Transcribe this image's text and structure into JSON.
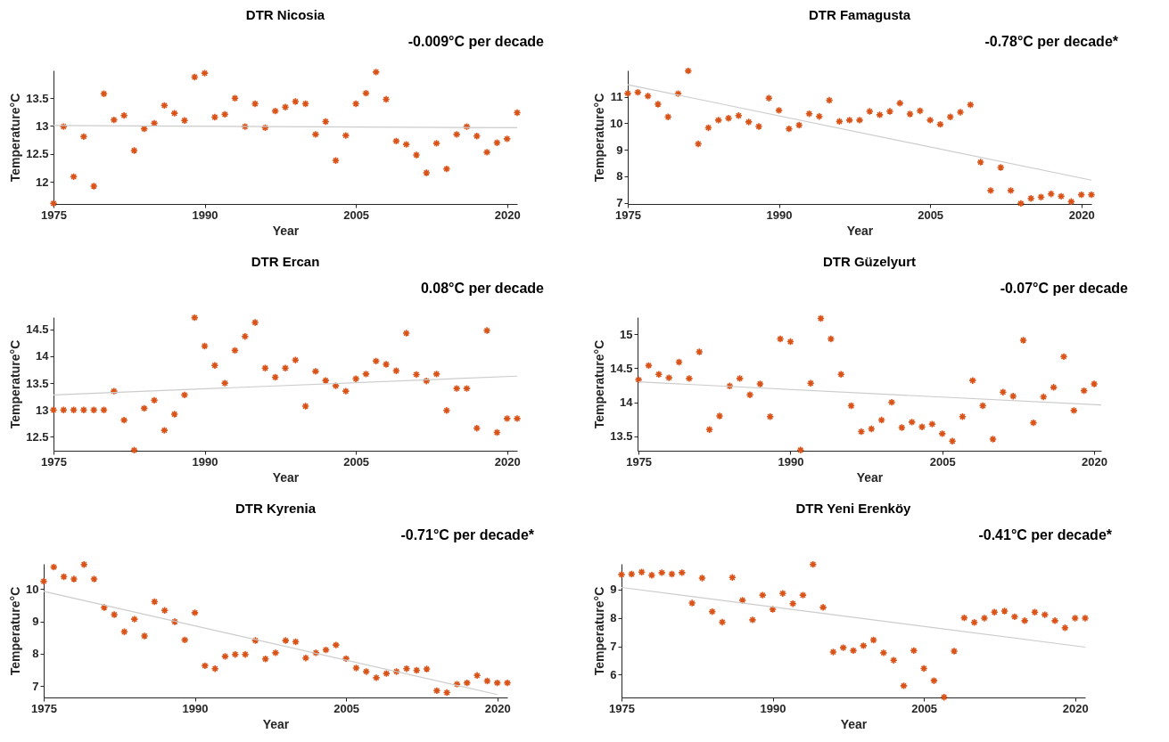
{
  "chart_data": [
    {
      "type": "scatter",
      "title": "DTR Nicosia",
      "xlabel": "Year",
      "ylabel": "Temperature°C",
      "annotations": [
        "-0.009°C per decade"
      ],
      "grid": false,
      "xlim": [
        1975,
        2021
      ],
      "xticks": [
        1975,
        1990,
        2005,
        2020
      ],
      "ylim": [
        11.6,
        14.0
      ],
      "yticks": [
        12,
        12.5,
        13,
        13.5
      ],
      "x": [
        1975,
        1976,
        1977,
        1978,
        1979,
        1980,
        1981,
        1982,
        1983,
        1984,
        1985,
        1986,
        1987,
        1988,
        1989,
        1990,
        1991,
        1992,
        1993,
        1994,
        1995,
        1996,
        1997,
        1998,
        1999,
        2000,
        2001,
        2002,
        2003,
        2004,
        2005,
        2006,
        2007,
        2008,
        2009,
        2010,
        2011,
        2012,
        2013,
        2014,
        2015,
        2016,
        2017,
        2018,
        2019,
        2020,
        2021
      ],
      "series": [
        {
          "marker": "cross",
          "color": "#d95319",
          "values": [
            11.61,
            12.99,
            12.09,
            12.81,
            11.92,
            13.58,
            13.11,
            13.19,
            12.56,
            12.95,
            13.05,
            13.37,
            13.23,
            13.1,
            13.88,
            13.95,
            13.16,
            13.21,
            13.5,
            12.99,
            13.4,
            12.97,
            13.27,
            13.34,
            13.44,
            13.4,
            12.85,
            13.08,
            12.38,
            12.83,
            13.4,
            13.59,
            13.97,
            13.48,
            12.73,
            12.67,
            12.48,
            12.16,
            12.69,
            12.23,
            12.85,
            12.99,
            12.82,
            12.53,
            12.7,
            12.77,
            13.24
          ]
        },
        {
          "type": "line",
          "color": "#cccccc",
          "x": [
            1975,
            2021
          ],
          "values": [
            13.01,
            12.97
          ]
        }
      ]
    },
    {
      "type": "scatter",
      "title": "DTR Famagusta",
      "xlabel": "Year",
      "ylabel": "Temperature°C",
      "annotations": [
        "-0.78°C per decade*"
      ],
      "grid": false,
      "xlim": [
        1975,
        2021
      ],
      "xticks": [
        1975,
        1990,
        2005,
        2020
      ],
      "ylim": [
        6.95,
        12
      ],
      "yticks": [
        7,
        8,
        9,
        10,
        11
      ],
      "x": [
        1975,
        1976,
        1977,
        1978,
        1979,
        1980,
        1981,
        1982,
        1983,
        1984,
        1985,
        1986,
        1987,
        1988,
        1989,
        1990,
        1991,
        1992,
        1993,
        1994,
        1995,
        1996,
        1997,
        1998,
        1999,
        2000,
        2001,
        2002,
        2003,
        2004,
        2005,
        2006,
        2007,
        2008,
        2009,
        2010,
        2011,
        2012,
        2013,
        2014,
        2015,
        2016,
        2017,
        2018,
        2019,
        2020,
        2021
      ],
      "series": [
        {
          "marker": "cross",
          "color": "#d95319",
          "values": [
            11.13,
            11.17,
            11.03,
            10.72,
            10.24,
            11.12,
            11.98,
            9.22,
            9.83,
            10.12,
            10.19,
            10.29,
            10.05,
            9.88,
            10.95,
            10.49,
            9.79,
            9.93,
            10.36,
            10.26,
            10.87,
            10.07,
            10.12,
            10.12,
            10.45,
            10.32,
            10.45,
            10.76,
            10.35,
            10.47,
            10.12,
            9.96,
            10.24,
            10.42,
            10.7,
            8.53,
            7.46,
            8.33,
            7.46,
            6.97,
            7.16,
            7.21,
            7.33,
            7.24,
            7.04,
            7.3,
            7.3
          ]
        },
        {
          "type": "line",
          "color": "#cccccc",
          "x": [
            1975,
            2021
          ],
          "values": [
            11.46,
            7.85
          ]
        }
      ]
    },
    {
      "type": "scatter",
      "title": "DTR Ercan",
      "xlabel": "Year",
      "ylabel": "Temperature°C",
      "annotations": [
        "0.08°C per decade"
      ],
      "grid": false,
      "xlim": [
        1975,
        2021
      ],
      "xticks": [
        1975,
        1990,
        2005,
        2020
      ],
      "ylim": [
        12.24,
        14.73
      ],
      "yticks": [
        12.5,
        13,
        13.5,
        14,
        14.5
      ],
      "x": [
        1975,
        1976,
        1977,
        1978,
        1979,
        1980,
        1981,
        1982,
        1983,
        1984,
        1985,
        1986,
        1987,
        1988,
        1989,
        1990,
        1991,
        1992,
        1993,
        1994,
        1995,
        1996,
        1997,
        1998,
        1999,
        2000,
        2001,
        2002,
        2003,
        2004,
        2005,
        2006,
        2007,
        2008,
        2009,
        2010,
        2011,
        2012,
        2013,
        2014,
        2015,
        2016,
        2017,
        2018,
        2019,
        2020,
        2021
      ],
      "series": [
        {
          "marker": "cross",
          "color": "#d95319",
          "values": [
            13.0,
            13.0,
            13.0,
            13.0,
            13.0,
            13.0,
            13.35,
            12.81,
            12.25,
            13.03,
            13.18,
            12.62,
            12.92,
            13.28,
            14.72,
            14.19,
            13.83,
            13.5,
            14.11,
            14.37,
            14.63,
            13.78,
            13.61,
            13.78,
            13.93,
            13.07,
            13.72,
            13.55,
            13.45,
            13.35,
            13.58,
            13.67,
            13.91,
            13.85,
            13.73,
            14.43,
            13.66,
            13.54,
            13.67,
            12.99,
            13.4,
            13.4,
            12.66,
            14.48,
            12.58,
            12.84,
            12.84
          ]
        },
        {
          "type": "line",
          "color": "#cccccc",
          "x": [
            1975,
            2021
          ],
          "values": [
            13.28,
            13.63
          ]
        }
      ]
    },
    {
      "type": "scatter",
      "title": "DTR Güzelyurt",
      "xlabel": "Year",
      "ylabel": "Temperature°C",
      "annotations": [
        "-0.07°C per decade"
      ],
      "grid": false,
      "xlim": [
        1974.9,
        2020.7
      ],
      "xticks": [
        1975,
        1990,
        2005,
        2020
      ],
      "ylim": [
        13.29,
        15.25
      ],
      "yticks": [
        13.5,
        14,
        14.5,
        15
      ],
      "x": [
        1975,
        1976,
        1977,
        1978,
        1979,
        1980,
        1981,
        1982,
        1983,
        1984,
        1985,
        1986,
        1987,
        1988,
        1989,
        1990,
        1991,
        1992,
        1993,
        1994,
        1995,
        1996,
        1997,
        1998,
        1999,
        2000,
        2001,
        2002,
        2003,
        2004,
        2005,
        2006,
        2007,
        2008,
        2009,
        2010,
        2011,
        2012,
        2013,
        2014,
        2015,
        2016,
        2017,
        2018,
        2019,
        2020
      ],
      "series": [
        {
          "marker": "cross",
          "color": "#d95319",
          "values": [
            14.33,
            14.54,
            14.41,
            14.36,
            14.59,
            14.35,
            14.74,
            13.6,
            13.8,
            14.24,
            14.35,
            14.11,
            14.27,
            13.79,
            14.93,
            14.89,
            13.3,
            14.28,
            15.23,
            14.93,
            14.41,
            13.95,
            13.57,
            13.61,
            13.74,
            14.0,
            13.63,
            13.71,
            13.64,
            13.68,
            13.54,
            13.43,
            13.79,
            14.32,
            13.95,
            13.46,
            14.15,
            14.09,
            14.91,
            13.7,
            14.08,
            14.22,
            14.67,
            13.88,
            14.17,
            14.27
          ]
        },
        {
          "type": "line",
          "color": "#cccccc",
          "x": [
            1975,
            2020.7
          ],
          "values": [
            14.3,
            13.96
          ]
        }
      ]
    },
    {
      "type": "scatter",
      "title": "DTR Kyrenia",
      "xlabel": "Year",
      "ylabel": "Temperature°C",
      "annotations": [
        "-0.71°C per decade*"
      ],
      "grid": false,
      "xlim": [
        1975,
        2021
      ],
      "xticks": [
        1975,
        1990,
        2005,
        2020
      ],
      "ylim": [
        6.65,
        10.78
      ],
      "yticks": [
        7,
        8,
        9,
        10
      ],
      "x": [
        1975,
        1976,
        1977,
        1978,
        1979,
        1980,
        1981,
        1982,
        1983,
        1984,
        1985,
        1986,
        1987,
        1988,
        1989,
        1990,
        1991,
        1992,
        1993,
        1994,
        1995,
        1996,
        1997,
        1998,
        1999,
        2000,
        2001,
        2002,
        2003,
        2004,
        2005,
        2006,
        2007,
        2008,
        2009,
        2010,
        2011,
        2012,
        2013,
        2014,
        2015,
        2016,
        2017,
        2018,
        2019,
        2020,
        2021
      ],
      "series": [
        {
          "marker": "cross",
          "color": "#d95319",
          "values": [
            10.24,
            10.68,
            10.38,
            10.31,
            10.76,
            10.31,
            9.43,
            9.21,
            8.68,
            9.07,
            8.55,
            9.61,
            9.34,
            8.99,
            8.43,
            9.27,
            7.63,
            7.54,
            7.92,
            7.98,
            7.98,
            8.41,
            7.84,
            8.03,
            8.41,
            8.37,
            7.87,
            8.03,
            8.12,
            8.27,
            7.85,
            7.56,
            7.45,
            7.26,
            7.39,
            7.45,
            7.54,
            7.49,
            7.53,
            6.86,
            6.8,
            7.06,
            7.1,
            7.33,
            7.16,
            7.1,
            7.1
          ]
        },
        {
          "type": "line",
          "color": "#cccccc",
          "x": [
            1975,
            2020
          ],
          "values": [
            9.93,
            6.74
          ]
        }
      ]
    },
    {
      "type": "scatter",
      "title": "DTR Yeni Erenköy",
      "xlabel": "Year",
      "ylabel": "Temperature°C",
      "annotations": [
        "-0.41°C per decade*"
      ],
      "grid": false,
      "xlim": [
        1975,
        2021
      ],
      "xticks": [
        1975,
        1990,
        2005,
        2020
      ],
      "ylim": [
        5.2,
        9.9
      ],
      "yticks": [
        6,
        7,
        8,
        9
      ],
      "x": [
        1975,
        1976,
        1977,
        1978,
        1979,
        1980,
        1981,
        1982,
        1983,
        1984,
        1985,
        1986,
        1987,
        1988,
        1989,
        1990,
        1991,
        1992,
        1993,
        1994,
        1995,
        1996,
        1997,
        1998,
        1999,
        2000,
        2001,
        2002,
        2003,
        2004,
        2005,
        2006,
        2007,
        2008,
        2009,
        2010,
        2011,
        2012,
        2013,
        2014,
        2015,
        2016,
        2017,
        2018,
        2019,
        2020,
        2021
      ],
      "series": [
        {
          "marker": "cross",
          "color": "#d95319",
          "values": [
            9.52,
            9.54,
            9.61,
            9.5,
            9.59,
            9.54,
            9.59,
            8.52,
            9.4,
            8.22,
            7.85,
            9.42,
            8.62,
            7.93,
            8.8,
            8.3,
            8.86,
            8.5,
            8.8,
            9.88,
            8.37,
            6.8,
            6.95,
            6.85,
            7.02,
            7.22,
            6.77,
            6.51,
            5.61,
            6.85,
            6.22,
            5.79,
            5.21,
            6.83,
            8.0,
            7.84,
            7.99,
            8.2,
            8.24,
            8.04,
            7.9,
            8.2,
            8.11,
            7.9,
            7.65,
            7.99,
            7.99
          ]
        },
        {
          "type": "line",
          "color": "#cccccc",
          "x": [
            1975,
            2021
          ],
          "values": [
            9.07,
            6.97
          ]
        }
      ]
    }
  ]
}
